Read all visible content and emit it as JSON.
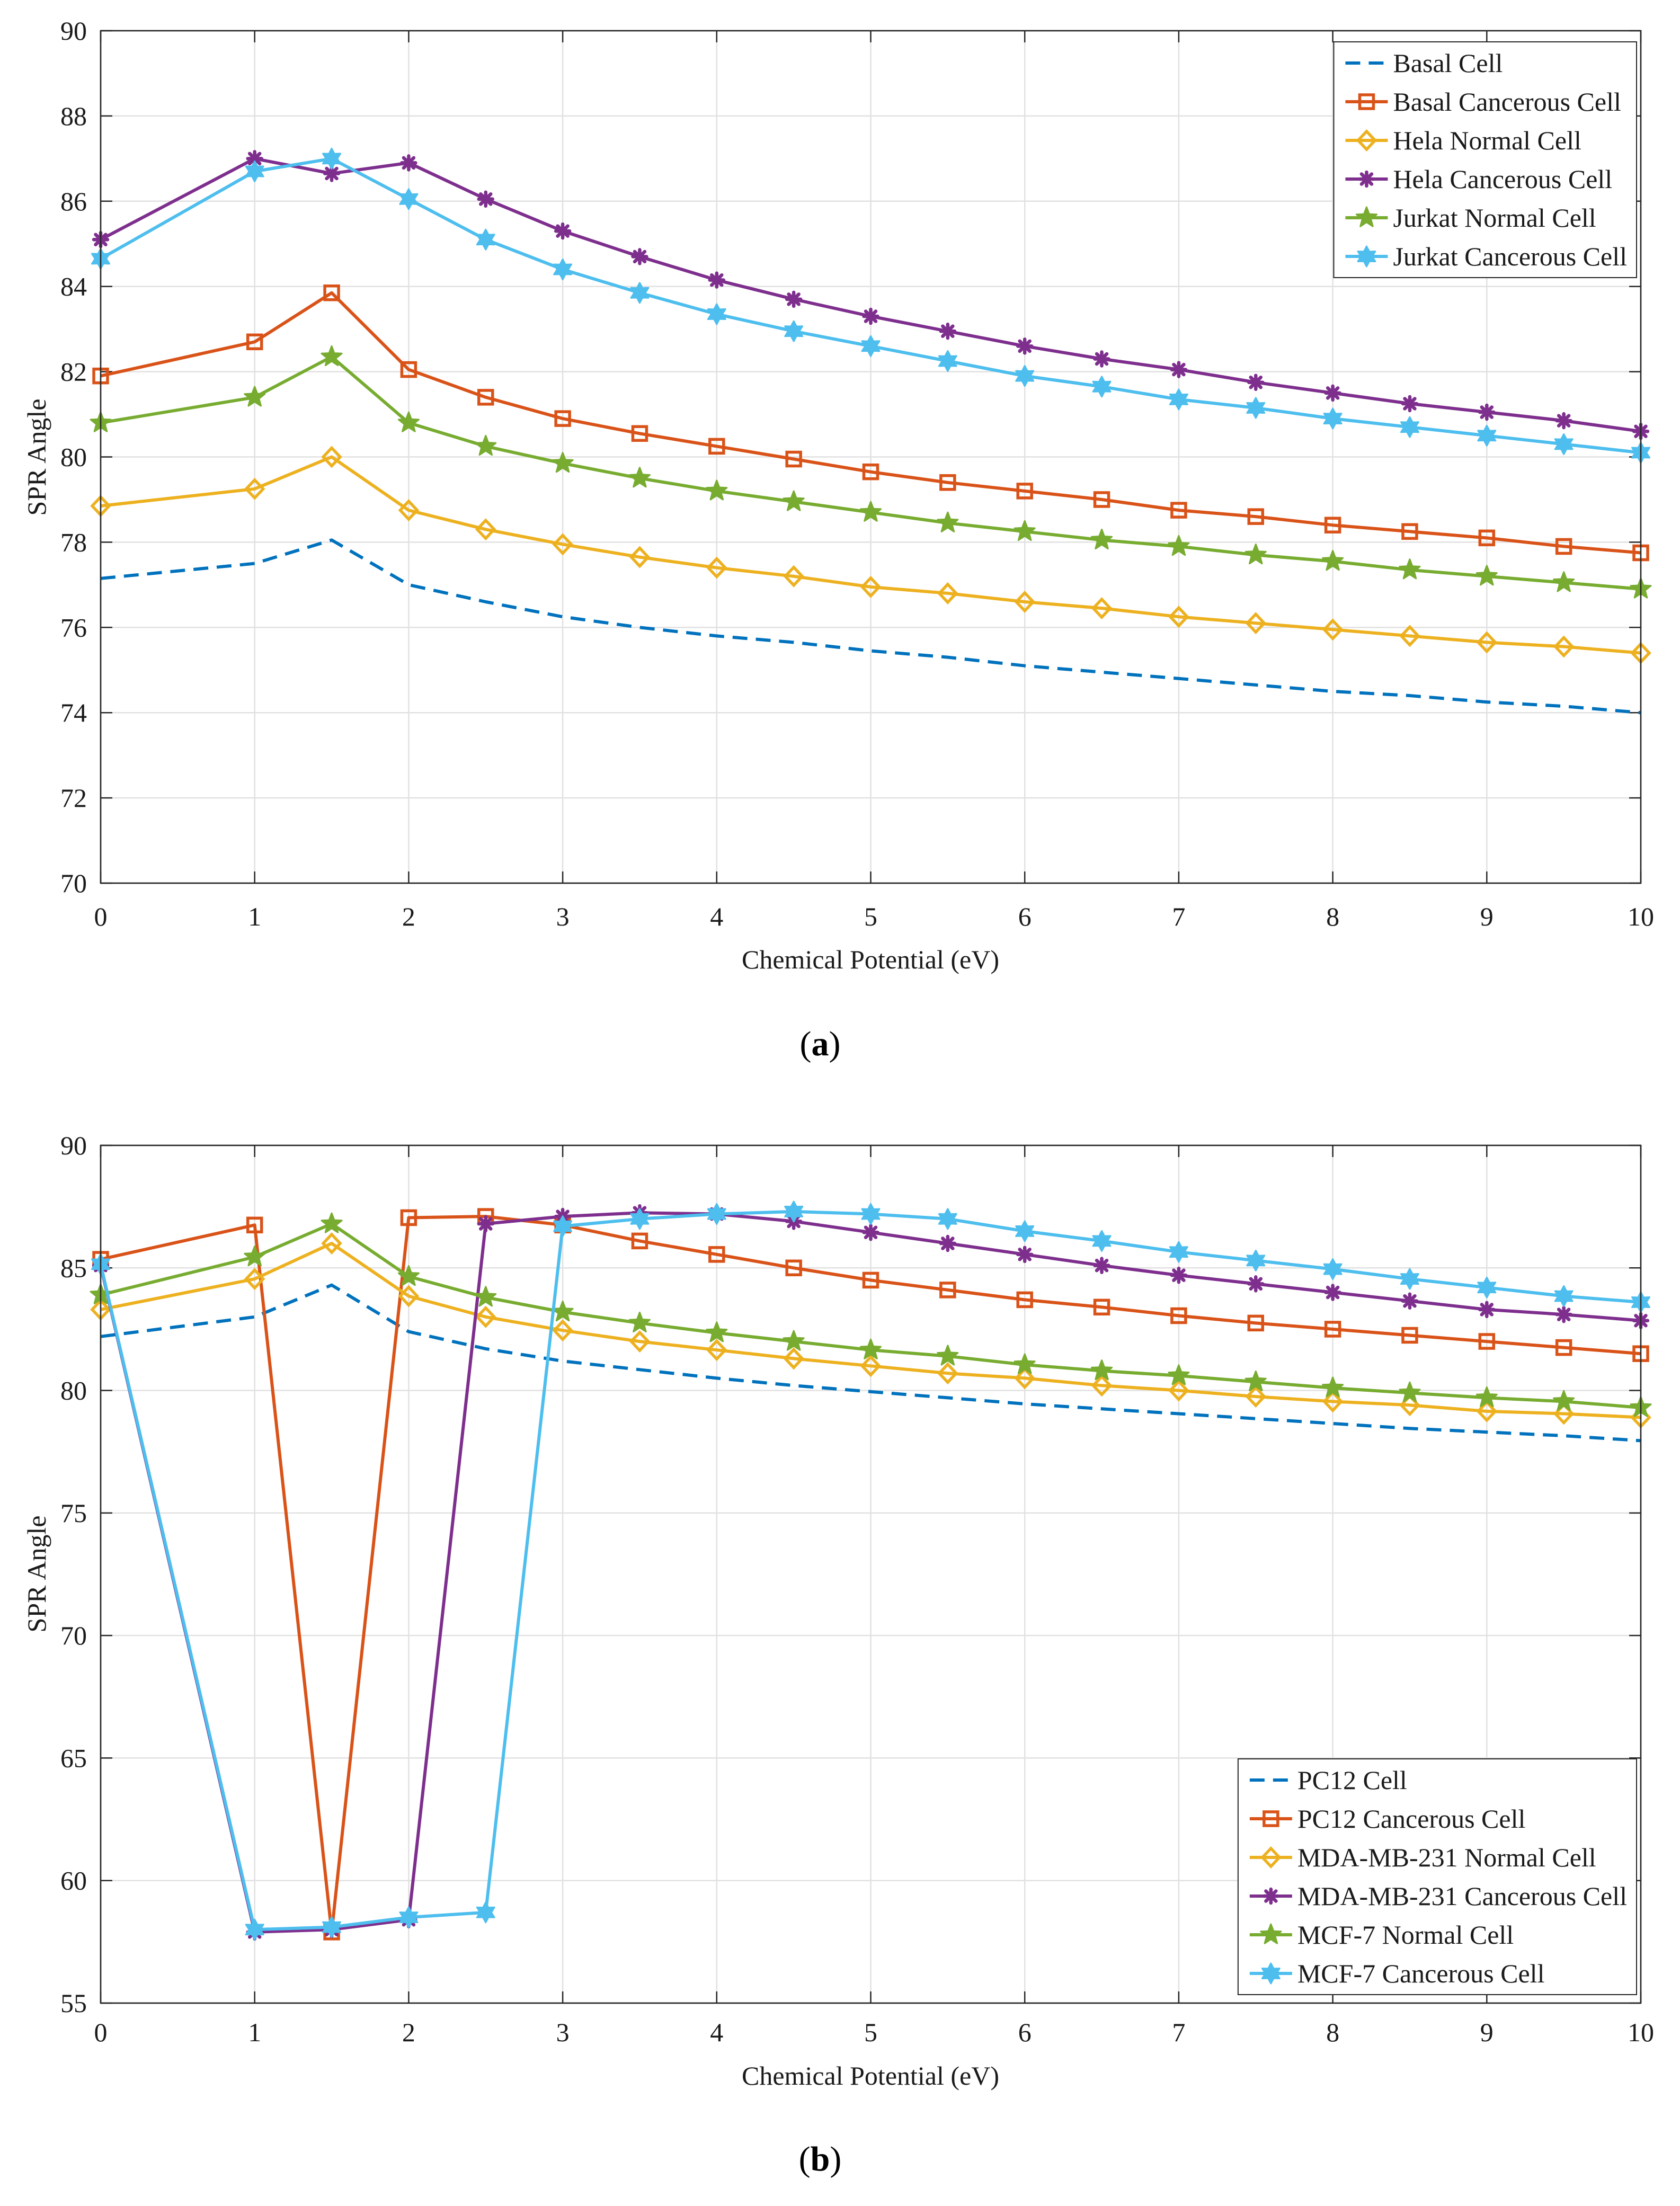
{
  "panels": [
    {
      "label_open": "(",
      "label": "a",
      "label_close": ")"
    },
    {
      "label_open": "(",
      "label": "b",
      "label_close": ")"
    }
  ],
  "chart_data": [
    {
      "type": "line",
      "xlabel": "Chemical Potential (eV)",
      "ylabel": "SPR Angle",
      "xlim": [
        0,
        10
      ],
      "ylim": [
        70,
        90
      ],
      "xticks": [
        0,
        1,
        2,
        3,
        4,
        5,
        6,
        7,
        8,
        9,
        10
      ],
      "yticks": [
        70,
        72,
        74,
        76,
        78,
        80,
        82,
        84,
        86,
        88,
        90
      ],
      "grid": true,
      "legend": "top-right",
      "x": [
        0,
        1,
        1.5,
        2,
        2.5,
        3,
        3.5,
        4,
        4.5,
        5,
        5.5,
        6,
        6.5,
        7,
        7.5,
        8,
        8.5,
        9,
        9.5,
        10
      ],
      "series": [
        {
          "name": "Basal Cell",
          "color": "#0072BD",
          "values": [
            77.15,
            77.5,
            78.05,
            77.0,
            76.6,
            76.25,
            76.0,
            75.8,
            75.65,
            75.45,
            75.3,
            75.1,
            74.95,
            74.8,
            74.65,
            74.5,
            74.4,
            74.25,
            74.15,
            74.0
          ]
        },
        {
          "name": "Basal Cancerous Cell",
          "color": "#D95319",
          "values": [
            81.9,
            82.7,
            83.85,
            82.05,
            81.4,
            80.9,
            80.55,
            80.25,
            79.95,
            79.65,
            79.4,
            79.2,
            79.0,
            78.75,
            78.6,
            78.4,
            78.25,
            78.1,
            77.9,
            77.75
          ]
        },
        {
          "name": "Hela Normal Cell",
          "color": "#EDB120",
          "values": [
            78.85,
            79.25,
            80.0,
            78.75,
            78.3,
            77.95,
            77.65,
            77.4,
            77.2,
            76.95,
            76.8,
            76.6,
            76.45,
            76.25,
            76.1,
            75.95,
            75.8,
            75.65,
            75.55,
            75.4
          ]
        },
        {
          "name": "Hela Cancerous Cell",
          "color": "#7E2F8E",
          "values": [
            85.1,
            87.0,
            86.65,
            86.9,
            86.05,
            85.3,
            84.7,
            84.15,
            83.7,
            83.3,
            82.95,
            82.6,
            82.3,
            82.05,
            81.75,
            81.5,
            81.25,
            81.05,
            80.85,
            80.6
          ]
        },
        {
          "name": "Jurkat Normal Cell",
          "color": "#77AC30",
          "values": [
            80.8,
            81.4,
            82.35,
            80.8,
            80.25,
            79.85,
            79.5,
            79.2,
            78.95,
            78.7,
            78.45,
            78.25,
            78.05,
            77.9,
            77.7,
            77.55,
            77.35,
            77.2,
            77.05,
            76.9
          ]
        },
        {
          "name": "Jurkat Cancerous Cell",
          "color": "#4DBEEE",
          "values": [
            84.65,
            86.7,
            87.0,
            86.05,
            85.1,
            84.4,
            83.85,
            83.35,
            82.95,
            82.6,
            82.25,
            81.9,
            81.65,
            81.35,
            81.15,
            80.9,
            80.7,
            80.5,
            80.3,
            80.1
          ]
        }
      ]
    },
    {
      "type": "line",
      "xlabel": "Chemical Potential (eV)",
      "ylabel": "SPR Angle",
      "xlim": [
        0,
        10
      ],
      "ylim": [
        55,
        90
      ],
      "xticks": [
        0,
        1,
        2,
        3,
        4,
        5,
        6,
        7,
        8,
        9,
        10
      ],
      "yticks": [
        55,
        60,
        65,
        70,
        75,
        80,
        85,
        90
      ],
      "grid": true,
      "legend": "bottom-right",
      "x": [
        0,
        1,
        1.5,
        2,
        2.5,
        3,
        3.5,
        4,
        4.5,
        5,
        5.5,
        6,
        6.5,
        7,
        7.5,
        8,
        8.5,
        9,
        9.5,
        10
      ],
      "series": [
        {
          "name": "PC12 Cell",
          "color": "#0072BD",
          "values": [
            82.2,
            83.0,
            84.3,
            82.4,
            81.7,
            81.2,
            80.85,
            80.5,
            80.2,
            79.95,
            79.7,
            79.45,
            79.25,
            79.05,
            78.85,
            78.65,
            78.45,
            78.3,
            78.15,
            77.95
          ]
        },
        {
          "name": "PC12 Cancerous Cell",
          "color": "#D95319",
          "values": [
            85.35,
            86.75,
            57.9,
            87.05,
            87.1,
            86.75,
            86.1,
            85.55,
            85.0,
            84.5,
            84.1,
            83.7,
            83.4,
            83.05,
            82.75,
            82.5,
            82.25,
            82.0,
            81.75,
            81.5
          ]
        },
        {
          "name": "MDA-MB-231 Normal Cell",
          "color": "#EDB120",
          "values": [
            83.3,
            84.55,
            86.0,
            83.85,
            83.0,
            82.45,
            82.0,
            81.65,
            81.3,
            81.0,
            80.7,
            80.5,
            80.2,
            80.0,
            79.75,
            79.55,
            79.4,
            79.15,
            79.05,
            78.9
          ]
        },
        {
          "name": "MDA-MB-231 Cancerous Cell",
          "color": "#7E2F8E",
          "values": [
            85.1,
            57.9,
            58.0,
            58.4,
            86.8,
            87.1,
            87.25,
            87.2,
            86.9,
            86.45,
            86.0,
            85.55,
            85.1,
            84.7,
            84.35,
            84.0,
            83.65,
            83.3,
            83.1,
            82.85
          ]
        },
        {
          "name": "MCF-7 Normal Cell",
          "color": "#77AC30",
          "values": [
            83.9,
            85.45,
            86.8,
            84.65,
            83.8,
            83.2,
            82.75,
            82.35,
            82.0,
            81.65,
            81.4,
            81.05,
            80.8,
            80.6,
            80.35,
            80.1,
            79.9,
            79.7,
            79.55,
            79.3
          ]
        },
        {
          "name": "MCF-7 Cancerous Cell",
          "color": "#4DBEEE",
          "values": [
            85.15,
            58.0,
            58.1,
            58.5,
            58.7,
            86.7,
            87.0,
            87.2,
            87.3,
            87.2,
            87.0,
            86.5,
            86.1,
            85.65,
            85.3,
            84.95,
            84.55,
            84.2,
            83.85,
            83.6
          ]
        }
      ]
    }
  ]
}
